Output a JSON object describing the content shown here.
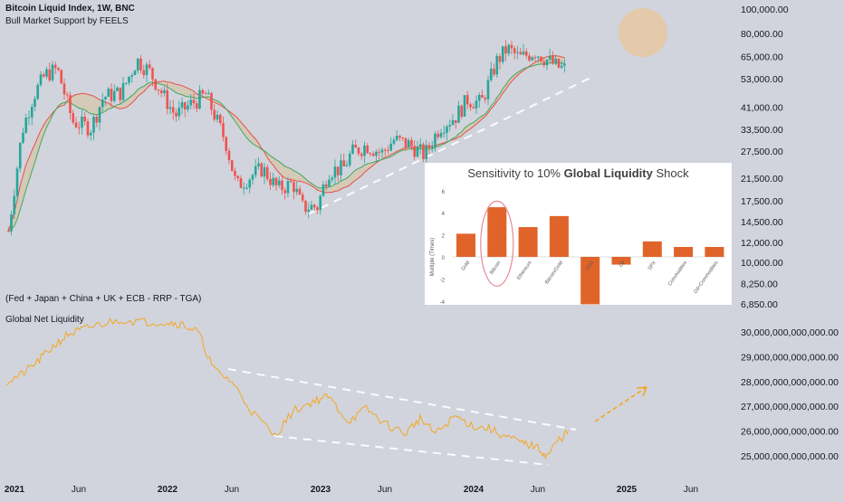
{
  "header": {
    "title": "Bitcoin Liquid Index, 1W, BNC",
    "indicator": "Bull Market Support by FEELS"
  },
  "liquidity_panel": {
    "formula": "(Fed + Japan + China + UK + ECB - RRP - TGA)",
    "title": "Global Net Liquidity"
  },
  "colors": {
    "background": "#d1d4dc",
    "candle_up": "#26a69a",
    "candle_down": "#ef5350",
    "sma": "#e8504a",
    "ema": "#3daa5a",
    "band_fill": "#d9bf9a",
    "liquidity_line": "#f5a623",
    "dashed": "#ffffff",
    "sun": "#e6c8a4",
    "inset_bar": "#e0642a",
    "inset_ellipse": "#e88a96"
  },
  "chart_data": [
    {
      "type": "candlestick",
      "title": "Bitcoin Liquid Index, 1W, BNC",
      "subtitle": "Bull Market Support by FEELS",
      "y_scale": "log",
      "ylim": [
        6850,
        100000
      ],
      "y_ticks": [
        "100,000.00",
        "80,000.00",
        "65,000.00",
        "53,000.00",
        "41,000.00",
        "33,500.00",
        "27,500.00",
        "21,500.00",
        "17,500.00",
        "14,500.00",
        "12,000.00",
        "10,000.00",
        "8,250.00",
        "6,850.00"
      ],
      "y_tick_values": [
        100000,
        80000,
        65000,
        53000,
        41000,
        33500,
        27500,
        21500,
        17500,
        14500,
        12000,
        10000,
        8250,
        6850
      ],
      "x_ticks": [
        {
          "label": "2021",
          "bold": true
        },
        {
          "label": "Jun",
          "bold": false
        },
        {
          "label": "2022",
          "bold": true
        },
        {
          "label": "Jun",
          "bold": false
        },
        {
          "label": "2023",
          "bold": true
        },
        {
          "label": "Jun",
          "bold": false
        },
        {
          "label": "2024",
          "bold": true
        },
        {
          "label": "Jun",
          "bold": false
        },
        {
          "label": "2025",
          "bold": true
        },
        {
          "label": "Jun",
          "bold": false
        }
      ],
      "x_tick_years": [
        2021.0,
        2021.42,
        2022.0,
        2022.42,
        2023.0,
        2023.42,
        2024.0,
        2024.42,
        2025.0,
        2025.42
      ],
      "price_path": [
        [
          2020.95,
          12000
        ],
        [
          2021.05,
          33000
        ],
        [
          2021.12,
          45000
        ],
        [
          2021.2,
          55000
        ],
        [
          2021.28,
          58000
        ],
        [
          2021.38,
          36000
        ],
        [
          2021.5,
          34000
        ],
        [
          2021.58,
          45000
        ],
        [
          2021.7,
          47000
        ],
        [
          2021.8,
          63000
        ],
        [
          2021.88,
          57000
        ],
        [
          2021.96,
          47000
        ],
        [
          2022.05,
          38000
        ],
        [
          2022.15,
          42000
        ],
        [
          2022.25,
          46000
        ],
        [
          2022.38,
          30000
        ],
        [
          2022.45,
          20000
        ],
        [
          2022.55,
          22000
        ],
        [
          2022.62,
          23500
        ],
        [
          2022.72,
          19500
        ],
        [
          2022.82,
          20500
        ],
        [
          2022.88,
          16500
        ],
        [
          2022.98,
          16600
        ],
        [
          2023.05,
          23000
        ],
        [
          2023.15,
          23500
        ],
        [
          2023.2,
          27000
        ],
        [
          2023.3,
          29000
        ],
        [
          2023.4,
          27000
        ],
        [
          2023.48,
          30500
        ],
        [
          2023.58,
          29200
        ],
        [
          2023.68,
          26500
        ],
        [
          2023.78,
          34500
        ],
        [
          2023.88,
          37500
        ],
        [
          2023.96,
          44000
        ],
        [
          2024.05,
          42500
        ],
        [
          2024.15,
          62000
        ],
        [
          2024.22,
          70000
        ],
        [
          2024.3,
          64000
        ],
        [
          2024.4,
          68000
        ],
        [
          2024.48,
          63000
        ],
        [
          2024.55,
          59000
        ],
        [
          2024.6,
          58000
        ]
      ]
    },
    {
      "type": "line",
      "title": "Global Net Liquidity",
      "subtitle": "(Fed + Japan + China + UK + ECB - RRP - TGA)",
      "y_ticks": [
        "30,000,000,000,000.00",
        "29,000,000,000,000.00",
        "28,000,000,000,000.00",
        "27,000,000,000,000.00",
        "26,000,000,000,000.00",
        "25,000,000,000,000.00"
      ],
      "y_tick_values_trillions": [
        30,
        29,
        28,
        27,
        26,
        25
      ],
      "ylim_trillions": [
        24.6,
        30.6
      ],
      "series_trillions": [
        [
          2020.95,
          28.0
        ],
        [
          2021.05,
          28.3
        ],
        [
          2021.15,
          28.8
        ],
        [
          2021.25,
          29.4
        ],
        [
          2021.35,
          29.9
        ],
        [
          2021.45,
          30.1
        ],
        [
          2021.55,
          30.3
        ],
        [
          2021.7,
          30.5
        ],
        [
          2021.85,
          30.4
        ],
        [
          2022.0,
          30.4
        ],
        [
          2022.1,
          30.3
        ],
        [
          2022.2,
          30.0
        ],
        [
          2022.3,
          28.5
        ],
        [
          2022.42,
          28.0
        ],
        [
          2022.55,
          26.8
        ],
        [
          2022.7,
          25.8
        ],
        [
          2022.82,
          26.8
        ],
        [
          2022.95,
          27.2
        ],
        [
          2023.05,
          27.4
        ],
        [
          2023.18,
          26.4
        ],
        [
          2023.3,
          26.9
        ],
        [
          2023.42,
          26.3
        ],
        [
          2023.55,
          25.9
        ],
        [
          2023.65,
          26.5
        ],
        [
          2023.75,
          25.9
        ],
        [
          2023.88,
          26.6
        ],
        [
          2024.0,
          26.2
        ],
        [
          2024.1,
          26.1
        ],
        [
          2024.2,
          25.8
        ],
        [
          2024.32,
          25.5
        ],
        [
          2024.4,
          25.4
        ],
        [
          2024.48,
          25.0
        ],
        [
          2024.55,
          25.6
        ],
        [
          2024.62,
          26.0
        ]
      ]
    },
    {
      "type": "bar",
      "title_prefix": "Sensitivity to 10%",
      "title_bold": "Global Liquidity",
      "title_suffix": "Shock",
      "ylabel": "Multiple (Times)",
      "ylim": [
        -4,
        6
      ],
      "y_ticks": [
        "6",
        "4",
        "2",
        "0",
        "-2",
        "-4"
      ],
      "categories": [
        "Gold",
        "Bitcoin",
        "Ethereum",
        "Bitcoin/Gold",
        "USD",
        "Oil",
        "SPX",
        "Commodities",
        "Oil+Commodities"
      ],
      "values": [
        2.1,
        4.5,
        2.7,
        3.7,
        -4.3,
        -0.7,
        1.4,
        0.9,
        0.9
      ],
      "highlight": "Bitcoin"
    }
  ]
}
